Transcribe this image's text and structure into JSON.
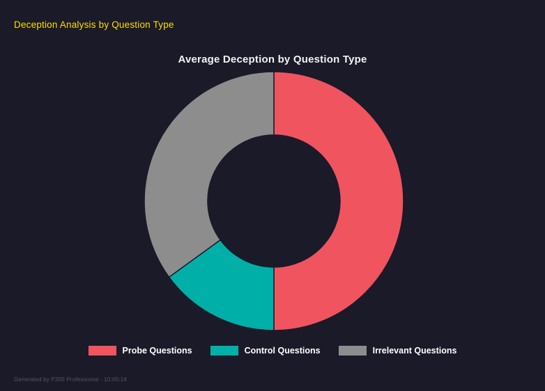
{
  "header": {
    "title": "Deception Analysis by Question Type",
    "color": "#ffdf00"
  },
  "footer": {
    "text": "Generated by P300 Professional - 10:05:14"
  },
  "chart_data": {
    "type": "pie",
    "variant": "donut",
    "title": "Average Deception by Question Type",
    "categories": [
      "Probe Questions",
      "Control Questions",
      "Irrelevant Questions"
    ],
    "values": [
      50,
      15,
      35
    ],
    "colors": [
      "#f0545f",
      "#00b0a8",
      "#8d8d8d"
    ],
    "legend_position": "bottom",
    "inner_radius_ratio": 0.51,
    "start_angle_deg": 0,
    "direction": "clockwise",
    "background": "#1a1a29"
  }
}
